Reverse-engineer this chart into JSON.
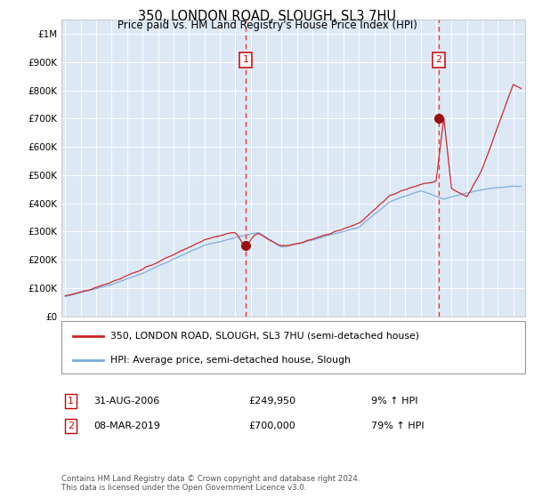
{
  "title": "350, LONDON ROAD, SLOUGH, SL3 7HU",
  "subtitle": "Price paid vs. HM Land Registry's House Price Index (HPI)",
  "legend_line1": "350, LONDON ROAD, SLOUGH, SL3 7HU (semi-detached house)",
  "legend_line2": "HPI: Average price, semi-detached house, Slough",
  "footer": "Contains HM Land Registry data © Crown copyright and database right 2024.\nThis data is licensed under the Open Government Licence v3.0.",
  "sale1_date": "31-AUG-2006",
  "sale1_price": "£249,950",
  "sale1_hpi": "9% ↑ HPI",
  "sale2_date": "08-MAR-2019",
  "sale2_price": "£700,000",
  "sale2_hpi": "79% ↑ HPI",
  "hpi_color": "#7aaadd",
  "price_color": "#cc2222",
  "marker_color": "#991111",
  "vline_color": "#ee3333",
  "plot_bg": "#dde8f5",
  "ylim": [
    0,
    1050000
  ],
  "yticks": [
    0,
    100000,
    200000,
    300000,
    400000,
    500000,
    600000,
    700000,
    800000,
    900000,
    1000000
  ],
  "ytick_labels": [
    "£0",
    "£100K",
    "£200K",
    "£300K",
    "£400K",
    "£500K",
    "£600K",
    "£700K",
    "£800K",
    "£900K",
    "£1M"
  ],
  "sale1_x": 2006.667,
  "sale1_y": 249950,
  "sale2_x": 2019.167,
  "sale2_y": 700000,
  "xmin": 1994.75,
  "xmax": 2024.75
}
